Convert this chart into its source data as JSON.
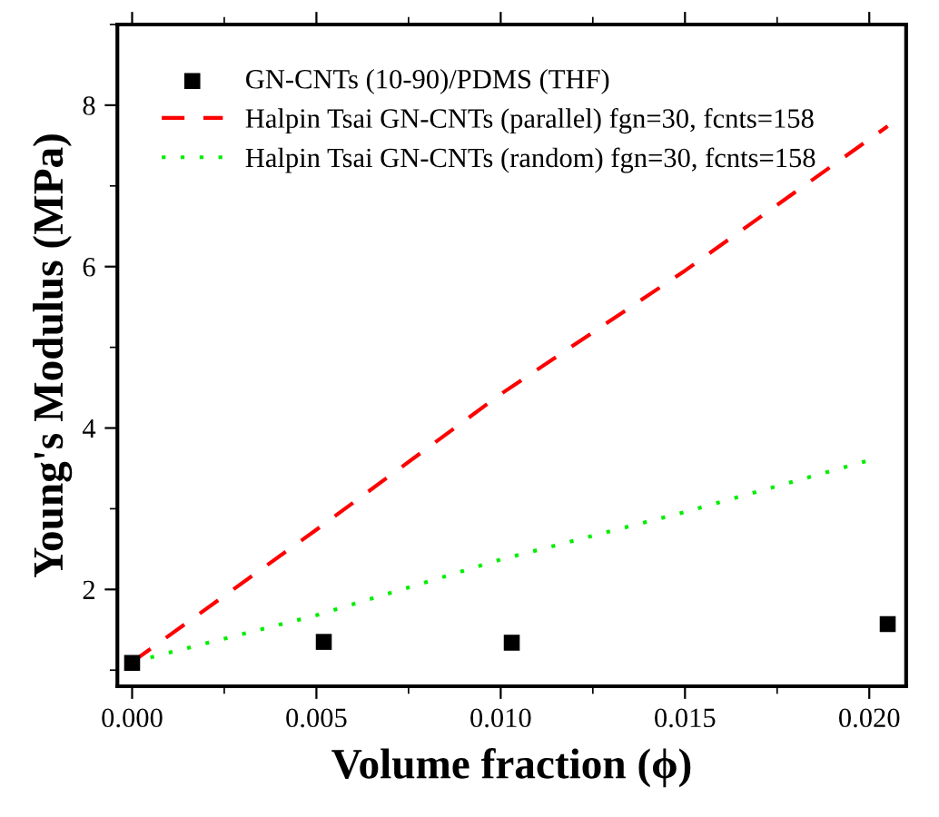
{
  "chart_data": {
    "type": "scatter",
    "xlabel": "Volume fraction (ϕ)",
    "ylabel": "Young's Modulus (MPa)",
    "series": [
      {
        "name": "GN-CNTs (10-90)/PDMS (THF)",
        "color": "#000000",
        "marker": "square",
        "x": [
          0.0,
          0.0052,
          0.0103,
          0.0205
        ],
        "values": [
          1.09,
          1.35,
          1.34,
          1.57
        ]
      },
      {
        "name": "Halpin Tsai GN-CNTs (parallel) fgn=30, fcnts=158",
        "type": "line",
        "color": "#ff0000",
        "line_style": "dashed",
        "x": [
          0.0,
          0.005,
          0.01,
          0.015,
          0.0205
        ],
        "values": [
          1.1,
          2.74,
          4.42,
          5.95,
          7.74
        ]
      },
      {
        "name": "Halpin Tsai GN-CNTs (random) fgn=30, fcnts=158",
        "type": "line",
        "color": "#00ee00",
        "line_style": "dotted",
        "x": [
          0.0,
          0.005,
          0.01,
          0.015,
          0.02
        ],
        "values": [
          1.1,
          1.68,
          2.37,
          2.96,
          3.6
        ]
      }
    ],
    "xlim": [
      -0.0004,
      0.021
    ],
    "xticks": [
      {
        "value": 0.0,
        "label": "0.000"
      },
      {
        "value": 0.005,
        "label": "0.005"
      },
      {
        "value": 0.01,
        "label": "0.010"
      },
      {
        "value": 0.015,
        "label": "0.015"
      },
      {
        "value": 0.02,
        "label": "0.020"
      }
    ],
    "ylim": [
      0.8,
      9
    ],
    "yticks": [
      2,
      4,
      6,
      8
    ],
    "legend": "top left",
    "grid": false
  }
}
